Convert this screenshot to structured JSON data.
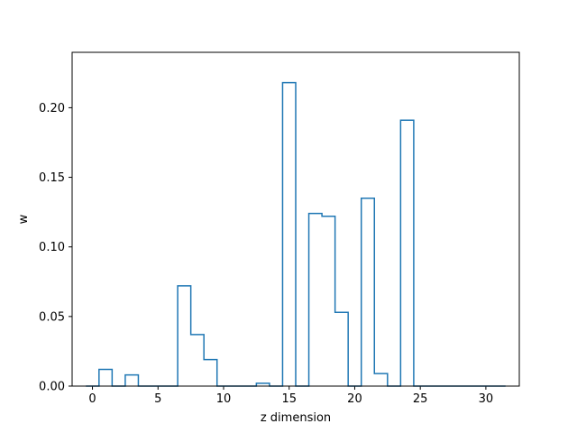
{
  "chart_data": {
    "type": "line",
    "style": "step-histogram",
    "title": "",
    "xlabel": "z dimension",
    "ylabel": "w",
    "xlim": [
      -1.55,
      32.55
    ],
    "ylim": [
      0,
      0.2398
    ],
    "grid": false,
    "x_ticks": [
      0,
      5,
      10,
      15,
      20,
      25,
      30
    ],
    "x_tick_labels": [
      "0",
      "5",
      "10",
      "15",
      "20",
      "25",
      "30"
    ],
    "y_ticks": [
      0.0,
      0.05,
      0.1,
      0.15,
      0.2
    ],
    "y_tick_labels": [
      "0.00",
      "0.05",
      "0.10",
      "0.15",
      "0.20"
    ],
    "series": [
      {
        "color": "#1f77b4",
        "x": [
          0,
          1,
          2,
          3,
          4,
          5,
          6,
          7,
          8,
          9,
          10,
          11,
          12,
          13,
          14,
          15,
          16,
          17,
          18,
          19,
          20,
          21,
          22,
          23,
          24,
          25,
          26,
          27,
          28,
          29,
          30,
          31
        ],
        "values": [
          0.0,
          0.012,
          0.0,
          0.008,
          0.0,
          0.0,
          0.0,
          0.072,
          0.037,
          0.019,
          0.0,
          0.0,
          0.0,
          0.002,
          0.0,
          0.218,
          0.0,
          0.124,
          0.122,
          0.053,
          0.0,
          0.135,
          0.009,
          0.0,
          0.191,
          0.0,
          0.0,
          0.0,
          0.0,
          0.0,
          0.0,
          0.0
        ]
      }
    ]
  }
}
